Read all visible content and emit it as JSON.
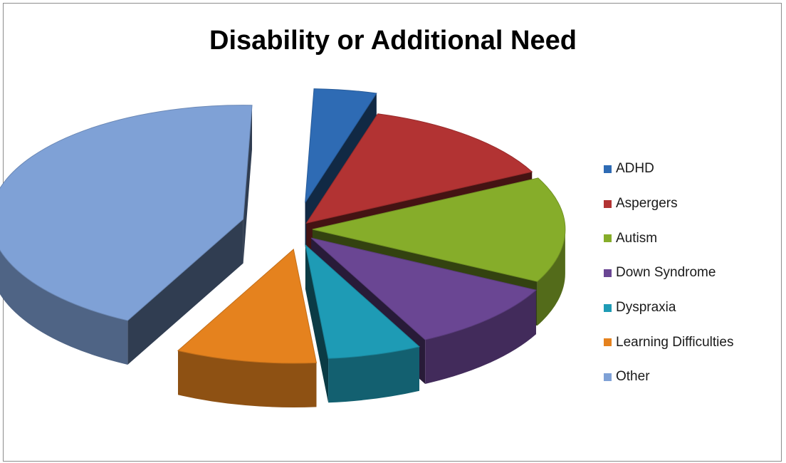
{
  "chart_data": {
    "type": "pie",
    "title": "Disability or Additional Need",
    "categories": [
      "ADHD",
      "Aspergers",
      "Autism",
      "Down Syndrome",
      "Dyspraxia",
      "Learning Difficulties",
      "Other"
    ],
    "values": [
      4,
      13,
      15,
      10,
      6,
      9,
      43
    ],
    "colors": [
      "#2e6bb4",
      "#b23333",
      "#86ad2a",
      "#6a4693",
      "#1e9bb5",
      "#e5821e",
      "#7fa1d6"
    ],
    "exploded": true,
    "three_d": true,
    "legend": "right",
    "xlabel": "",
    "ylabel": ""
  }
}
